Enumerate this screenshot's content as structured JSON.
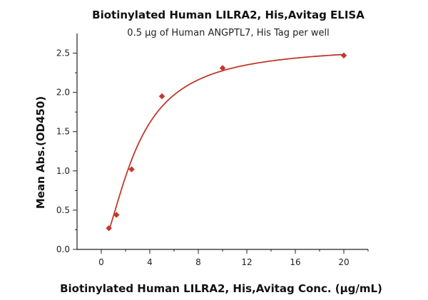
{
  "chart_data": {
    "type": "scatter",
    "title": "Biotinylated Human LILRA2, His,Avitag ELISA",
    "subtitle": "0.5 μg of Human ANGPTL7, His Tag per well",
    "xlabel": "Biotinylated Human LILRA2, His,Avitag Conc. (μg/mL)",
    "ylabel": "Mean Abs.(OD450)",
    "xlim": [
      -2,
      22
    ],
    "ylim": [
      0,
      2.75
    ],
    "xticks": [
      0,
      4,
      8,
      12,
      16,
      20
    ],
    "yticks": [
      0.0,
      0.5,
      1.0,
      1.5,
      2.0,
      2.5
    ],
    "xtick_labels": [
      "0",
      "4",
      "8",
      "12",
      "16",
      "20"
    ],
    "ytick_labels": [
      "0.0",
      "0.5",
      "1.0",
      "1.5",
      "2.0",
      "2.5"
    ],
    "grid": false,
    "legend": "none",
    "series": [
      {
        "x": [
          0.625,
          1.25,
          2.5,
          5,
          10,
          20
        ],
        "y": [
          0.27,
          0.44,
          1.02,
          1.95,
          2.31,
          2.47
        ],
        "marker": "diamond",
        "fit": "four-parameter-logistic",
        "color": "#c0392b"
      }
    ]
  }
}
